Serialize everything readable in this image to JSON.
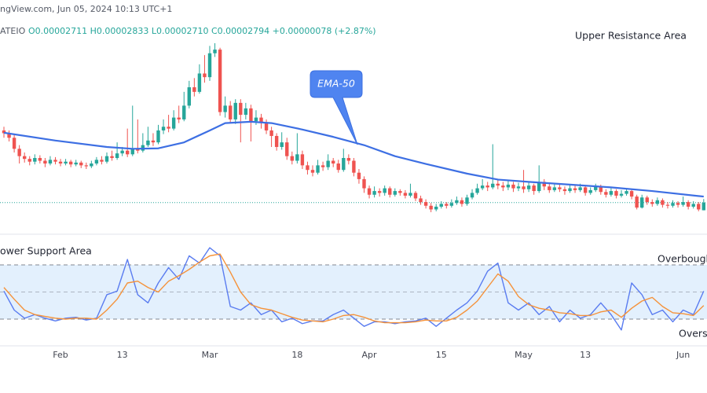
{
  "header": {
    "source": "ngView.com, Jun 05, 2024 10:13 UTC+1",
    "symbol": "ATEIO",
    "ohlc": "O0.00002711 H0.00002833 L0.00002710 C0.00002794 +0.00000078 (+2.87%)"
  },
  "chart_data": [
    {
      "type": "candlestick",
      "annotation": "Upper Resistance Area",
      "up_color": "#26a69a",
      "down_color": "#ef5350",
      "ylim": [
        2.45e-05,
        5e-05
      ],
      "last_price_line": true,
      "categories": [
        null,
        null,
        null,
        null,
        null,
        null,
        null,
        null,
        null,
        null,
        null,
        "Feb",
        null,
        null,
        null,
        null,
        null,
        null,
        null,
        null,
        null,
        null,
        null,
        "13",
        null,
        null,
        null,
        null,
        null,
        null,
        null,
        null,
        null,
        null,
        null,
        null,
        null,
        null,
        null,
        null,
        "Mar",
        null,
        null,
        null,
        null,
        null,
        null,
        null,
        null,
        null,
        null,
        null,
        null,
        null,
        null,
        null,
        null,
        "18",
        null,
        null,
        null,
        null,
        null,
        null,
        null,
        null,
        null,
        null,
        null,
        null,
        null,
        "Apr",
        null,
        null,
        null,
        null,
        null,
        null,
        null,
        null,
        null,
        null,
        null,
        null,
        null,
        "15",
        null,
        null,
        null,
        null,
        null,
        null,
        null,
        null,
        null,
        null,
        null,
        null,
        null,
        null,
        null,
        "May",
        null,
        null,
        null,
        null,
        null,
        null,
        null,
        null,
        null,
        null,
        null,
        "13",
        null,
        null,
        null,
        null,
        null,
        null,
        null,
        null,
        null,
        null,
        null,
        null,
        null,
        null,
        null,
        null,
        null,
        null,
        "Jun",
        null,
        null,
        null,
        null
      ],
      "open": [
        3.58e-05,
        3.55e-05,
        3.5e-05,
        3.38e-05,
        3.3e-05,
        3.27e-05,
        3.24e-05,
        3.28e-05,
        3.25e-05,
        3.22e-05,
        3.26e-05,
        3.24e-05,
        3.22e-05,
        3.24e-05,
        3.21e-05,
        3.23e-05,
        3.2e-05,
        3.19e-05,
        3.22e-05,
        3.26e-05,
        3.24e-05,
        3.3e-05,
        3.28e-05,
        3.33e-05,
        3.36e-05,
        3.32e-05,
        3.38e-05,
        3.36e-05,
        3.42e-05,
        3.47e-05,
        3.45e-05,
        3.58e-05,
        3.62e-05,
        3.6e-05,
        3.72e-05,
        3.7e-05,
        3.85e-05,
        4.05e-05,
        4e-05,
        4.2e-05,
        4.16e-05,
        4.42e-05,
        4.46e-05,
        3.78e-05,
        3.85e-05,
        3.7e-05,
        3.88e-05,
        3.75e-05,
        3.82e-05,
        3.68e-05,
        3.72e-05,
        3.66e-05,
        3.58e-05,
        3.52e-05,
        3.4e-05,
        3.45e-05,
        3.3e-05,
        3.25e-05,
        3.32e-05,
        3.2e-05,
        3.15e-05,
        3.12e-05,
        3.2e-05,
        3.18e-05,
        3.25e-05,
        3.22e-05,
        3.15e-05,
        3.28e-05,
        3.25e-05,
        3.12e-05,
        3.05e-05,
        2.95e-05,
        2.88e-05,
        2.92e-05,
        2.9e-05,
        2.95e-05,
        2.88e-05,
        2.92e-05,
        2.9e-05,
        2.87e-05,
        2.9e-05,
        2.84e-05,
        2.8e-05,
        2.76e-05,
        2.72e-05,
        2.75e-05,
        2.78e-05,
        2.76e-05,
        2.79e-05,
        2.82e-05,
        2.78e-05,
        2.85e-05,
        2.9e-05,
        2.95e-05,
        2.98e-05,
        2.96e-05,
        3e-05,
        2.98e-05,
        2.96e-05,
        2.99e-05,
        2.95e-05,
        2.97e-05,
        2.94e-05,
        2.98e-05,
        2.92e-05,
        3.02e-05,
        2.97e-05,
        2.93e-05,
        2.96e-05,
        2.94e-05,
        2.92e-05,
        2.95e-05,
        2.93e-05,
        2.96e-05,
        2.9e-05,
        2.93e-05,
        2.97e-05,
        2.91e-05,
        2.88e-05,
        2.92e-05,
        2.87e-05,
        2.89e-05,
        2.92e-05,
        2.86e-05,
        2.74e-05,
        2.85e-05,
        2.8e-05,
        2.78e-05,
        2.82e-05,
        2.77e-05,
        2.76e-05,
        2.79e-05,
        2.77e-05,
        2.8e-05,
        2.75e-05,
        2.78e-05,
        2.711e-05
      ],
      "high": [
        3.62e-05,
        3.58e-05,
        3.53e-05,
        3.42e-05,
        3.34e-05,
        3.3e-05,
        3.32e-05,
        3.31e-05,
        3.28e-05,
        3.3e-05,
        3.29e-05,
        3.27e-05,
        3.27e-05,
        3.26e-05,
        3.26e-05,
        3.25e-05,
        3.23e-05,
        3.25e-05,
        3.29e-05,
        3.3e-05,
        3.34e-05,
        3.36e-05,
        3.45e-05,
        3.4e-05,
        3.6e-05,
        3.85e-05,
        3.7e-05,
        3.55e-05,
        3.62e-05,
        3.55e-05,
        3.64e-05,
        3.7e-05,
        3.75e-05,
        3.8e-05,
        3.85e-05,
        4e-05,
        4.12e-05,
        4.15e-05,
        4.3e-05,
        4.4e-05,
        4.5e-05,
        4.53e-05,
        4.48e-05,
        3.95e-05,
        3.9e-05,
        3.92e-05,
        3.92e-05,
        3.88e-05,
        3.86e-05,
        3.8e-05,
        3.76e-05,
        3.7e-05,
        3.62e-05,
        3.55e-05,
        3.56e-05,
        3.5e-05,
        3.35e-05,
        3.55e-05,
        3.36e-05,
        3.24e-05,
        3.2e-05,
        3.26e-05,
        3.24e-05,
        3.32e-05,
        3.28e-05,
        3.26e-05,
        3.38e-05,
        3.32e-05,
        3.28e-05,
        3.16e-05,
        3.08e-05,
        2.98e-05,
        2.97e-05,
        2.95e-05,
        2.98e-05,
        2.97e-05,
        2.95e-05,
        2.94e-05,
        2.93e-05,
        3e-05,
        2.92e-05,
        2.87e-05,
        2.83e-05,
        2.79e-05,
        2.78e-05,
        2.81e-05,
        2.8e-05,
        2.83e-05,
        2.86e-05,
        2.85e-05,
        2.88e-05,
        2.94e-05,
        3e-05,
        3.05e-05,
        3.02e-05,
        3.43e-05,
        3.04e-05,
        3.02e-05,
        3.03e-05,
        3.02e-05,
        3.01e-05,
        3.15e-05,
        3.02e-05,
        3e-05,
        3.2e-05,
        3.05e-05,
        3e-05,
        3e-05,
        2.99e-05,
        2.97e-05,
        2.99e-05,
        2.98e-05,
        3e-05,
        2.98e-05,
        2.96e-05,
        3e-05,
        2.99e-05,
        2.94e-05,
        2.95e-05,
        2.94e-05,
        2.93e-05,
        2.95e-05,
        2.94e-05,
        2.88e-05,
        2.88e-05,
        2.87e-05,
        2.83e-05,
        2.85e-05,
        2.84e-05,
        2.8e-05,
        2.82e-05,
        2.81e-05,
        2.86e-05,
        2.82e-05,
        2.81e-05,
        2.8e-05,
        2.833e-05
      ],
      "low": [
        3.5e-05,
        3.46e-05,
        3.34e-05,
        3.22e-05,
        3.23e-05,
        3.2e-05,
        3.21e-05,
        3.22e-05,
        3.18e-05,
        3.2e-05,
        3.21e-05,
        3.19e-05,
        3.2e-05,
        3.18e-05,
        3.19e-05,
        3.17e-05,
        3.16e-05,
        3.17e-05,
        3.2e-05,
        3.21e-05,
        3.22e-05,
        3.25e-05,
        3.26e-05,
        3.3e-05,
        3.29e-05,
        3.3e-05,
        3.33e-05,
        3.34e-05,
        3.4e-05,
        3.41e-05,
        3.43e-05,
        3.54e-05,
        3.56e-05,
        3.58e-05,
        3.66e-05,
        3.68e-05,
        3.82e-05,
        3.95e-05,
        3.98e-05,
        4.1e-05,
        4.12e-05,
        4.38e-05,
        3.74e-05,
        3.72e-05,
        3.66e-05,
        3.65e-05,
        3.45e-05,
        3.7e-05,
        3.46e-05,
        3.64e-05,
        3.6e-05,
        3.54e-05,
        3.4e-05,
        3.36e-05,
        3.37e-05,
        3.26e-05,
        3.21e-05,
        3.22e-05,
        3.16e-05,
        3.1e-05,
        3.08e-05,
        3.1e-05,
        3.14e-05,
        3.15e-05,
        3.18e-05,
        3.12e-05,
        3.13e-05,
        3.21e-05,
        3.08e-05,
        3e-05,
        2.9e-05,
        2.84e-05,
        2.85e-05,
        2.86e-05,
        2.87e-05,
        2.85e-05,
        2.86e-05,
        2.87e-05,
        2.84e-05,
        2.85e-05,
        2.81e-05,
        2.77e-05,
        2.73e-05,
        2.69e-05,
        2.7e-05,
        2.73e-05,
        2.73e-05,
        2.74e-05,
        2.77e-05,
        2.75e-05,
        2.76e-05,
        2.83e-05,
        2.88e-05,
        2.93e-05,
        2.92e-05,
        2.94e-05,
        2.94e-05,
        2.92e-05,
        2.93e-05,
        2.91e-05,
        2.92e-05,
        2.9e-05,
        2.91e-05,
        2.88e-05,
        2.9e-05,
        2.93e-05,
        2.9e-05,
        2.91e-05,
        2.91e-05,
        2.88e-05,
        2.9e-05,
        2.9e-05,
        2.91e-05,
        2.87e-05,
        2.88e-05,
        2.91e-05,
        2.88e-05,
        2.85e-05,
        2.86e-05,
        2.84e-05,
        2.85e-05,
        2.87e-05,
        2.83e-05,
        2.72e-05,
        2.73e-05,
        2.77e-05,
        2.75e-05,
        2.76e-05,
        2.74e-05,
        2.73e-05,
        2.74e-05,
        2.74e-05,
        2.75e-05,
        2.72e-05,
        2.73e-05,
        2.7e-05,
        2.71e-05
      ],
      "close": [
        3.55e-05,
        3.5e-05,
        3.38e-05,
        3.3e-05,
        3.27e-05,
        3.24e-05,
        3.28e-05,
        3.25e-05,
        3.22e-05,
        3.26e-05,
        3.24e-05,
        3.22e-05,
        3.24e-05,
        3.21e-05,
        3.23e-05,
        3.2e-05,
        3.19e-05,
        3.22e-05,
        3.26e-05,
        3.24e-05,
        3.3e-05,
        3.28e-05,
        3.33e-05,
        3.36e-05,
        3.32e-05,
        3.38e-05,
        3.36e-05,
        3.42e-05,
        3.47e-05,
        3.45e-05,
        3.58e-05,
        3.62e-05,
        3.6e-05,
        3.72e-05,
        3.7e-05,
        3.85e-05,
        4.05e-05,
        4e-05,
        4.2e-05,
        4.16e-05,
        4.42e-05,
        4.46e-05,
        3.78e-05,
        3.85e-05,
        3.7e-05,
        3.88e-05,
        3.75e-05,
        3.82e-05,
        3.68e-05,
        3.72e-05,
        3.66e-05,
        3.58e-05,
        3.52e-05,
        3.4e-05,
        3.45e-05,
        3.3e-05,
        3.25e-05,
        3.32e-05,
        3.2e-05,
        3.15e-05,
        3.12e-05,
        3.2e-05,
        3.18e-05,
        3.25e-05,
        3.22e-05,
        3.15e-05,
        3.28e-05,
        3.25e-05,
        3.12e-05,
        3.05e-05,
        2.95e-05,
        2.88e-05,
        2.92e-05,
        2.9e-05,
        2.95e-05,
        2.88e-05,
        2.92e-05,
        2.9e-05,
        2.87e-05,
        2.9e-05,
        2.84e-05,
        2.8e-05,
        2.76e-05,
        2.72e-05,
        2.75e-05,
        2.78e-05,
        2.76e-05,
        2.79e-05,
        2.82e-05,
        2.78e-05,
        2.85e-05,
        2.9e-05,
        2.95e-05,
        2.98e-05,
        2.96e-05,
        3e-05,
        2.98e-05,
        2.96e-05,
        2.99e-05,
        2.95e-05,
        2.97e-05,
        2.94e-05,
        2.98e-05,
        2.92e-05,
        3.02e-05,
        2.97e-05,
        2.93e-05,
        2.96e-05,
        2.94e-05,
        2.92e-05,
        2.95e-05,
        2.93e-05,
        2.96e-05,
        2.9e-05,
        2.93e-05,
        2.97e-05,
        2.91e-05,
        2.88e-05,
        2.92e-05,
        2.87e-05,
        2.89e-05,
        2.92e-05,
        2.86e-05,
        2.74e-05,
        2.85e-05,
        2.8e-05,
        2.78e-05,
        2.82e-05,
        2.77e-05,
        2.76e-05,
        2.79e-05,
        2.77e-05,
        2.8e-05,
        2.75e-05,
        2.78e-05,
        2.72e-05,
        2.794e-05
      ],
      "ema": {
        "name": "EMA-50",
        "color": "#3d6fe3",
        "x": [
          0,
          10,
          20,
          25,
          30,
          35,
          40,
          43,
          48,
          52,
          58,
          64,
          70,
          76,
          82,
          90,
          96,
          102,
          110,
          118,
          126,
          136
        ],
        "values": [
          3.555e-05,
          3.47e-05,
          3.4e-05,
          3.38e-05,
          3.385e-05,
          3.45e-05,
          3.58e-05,
          3.66e-05,
          3.675e-05,
          3.66e-05,
          3.59e-05,
          3.51e-05,
          3.42e-05,
          3.3e-05,
          3.215e-05,
          3.11e-05,
          3.045e-05,
          3.02e-05,
          2.99e-05,
          2.96e-05,
          2.92e-05,
          2.86e-05
        ]
      }
    },
    {
      "type": "line",
      "title": "ower Support Area",
      "ylim": [
        0,
        100
      ],
      "bands": [
        80,
        50,
        20
      ],
      "band_labels": [
        "Overbough",
        "Overso"
      ],
      "band_fill": "#e3f0fd",
      "x": [
        0,
        2,
        4,
        6,
        8,
        10,
        12,
        14,
        16,
        18,
        20,
        22,
        24,
        26,
        28,
        30,
        32,
        34,
        36,
        38,
        40,
        42,
        44,
        46,
        48,
        50,
        52,
        54,
        56,
        58,
        60,
        62,
        64,
        66,
        68,
        70,
        72,
        74,
        76,
        78,
        80,
        82,
        84,
        86,
        88,
        90,
        92,
        94,
        96,
        98,
        100,
        102,
        104,
        106,
        108,
        110,
        112,
        114,
        116,
        118,
        120,
        122,
        124,
        126,
        128,
        130,
        132,
        134,
        136
      ],
      "series": [
        {
          "color": "#5a7cf0",
          "values": [
            51,
            30,
            21,
            25,
            21,
            18,
            21,
            22,
            19,
            21,
            47,
            51,
            86,
            47,
            38,
            60,
            77,
            64,
            90,
            82,
            99,
            90,
            34,
            30,
            38,
            25,
            30,
            17,
            21,
            15,
            18,
            18,
            25,
            30,
            21,
            12,
            17,
            17,
            15,
            17,
            18,
            21,
            12,
            21,
            30,
            38,
            51,
            73,
            82,
            38,
            30,
            38,
            25,
            34,
            17,
            30,
            21,
            25,
            38,
            25,
            8,
            60,
            47,
            25,
            30,
            17,
            30,
            25,
            51
          ]
        },
        {
          "color": "#f5923a",
          "values": [
            55,
            42,
            30,
            25,
            23,
            21,
            20,
            21,
            21,
            20,
            30,
            42,
            60,
            62,
            55,
            50,
            62,
            68,
            75,
            83,
            90,
            92,
            72,
            50,
            36,
            32,
            30,
            26,
            22,
            19,
            18,
            17,
            20,
            24,
            25,
            22,
            18,
            16,
            16,
            16,
            17,
            19,
            18,
            18,
            22,
            30,
            40,
            55,
            70,
            62,
            45,
            36,
            32,
            30,
            27,
            26,
            24,
            24,
            28,
            30,
            22,
            32,
            40,
            44,
            34,
            27,
            26,
            24,
            35
          ]
        }
      ]
    }
  ]
}
